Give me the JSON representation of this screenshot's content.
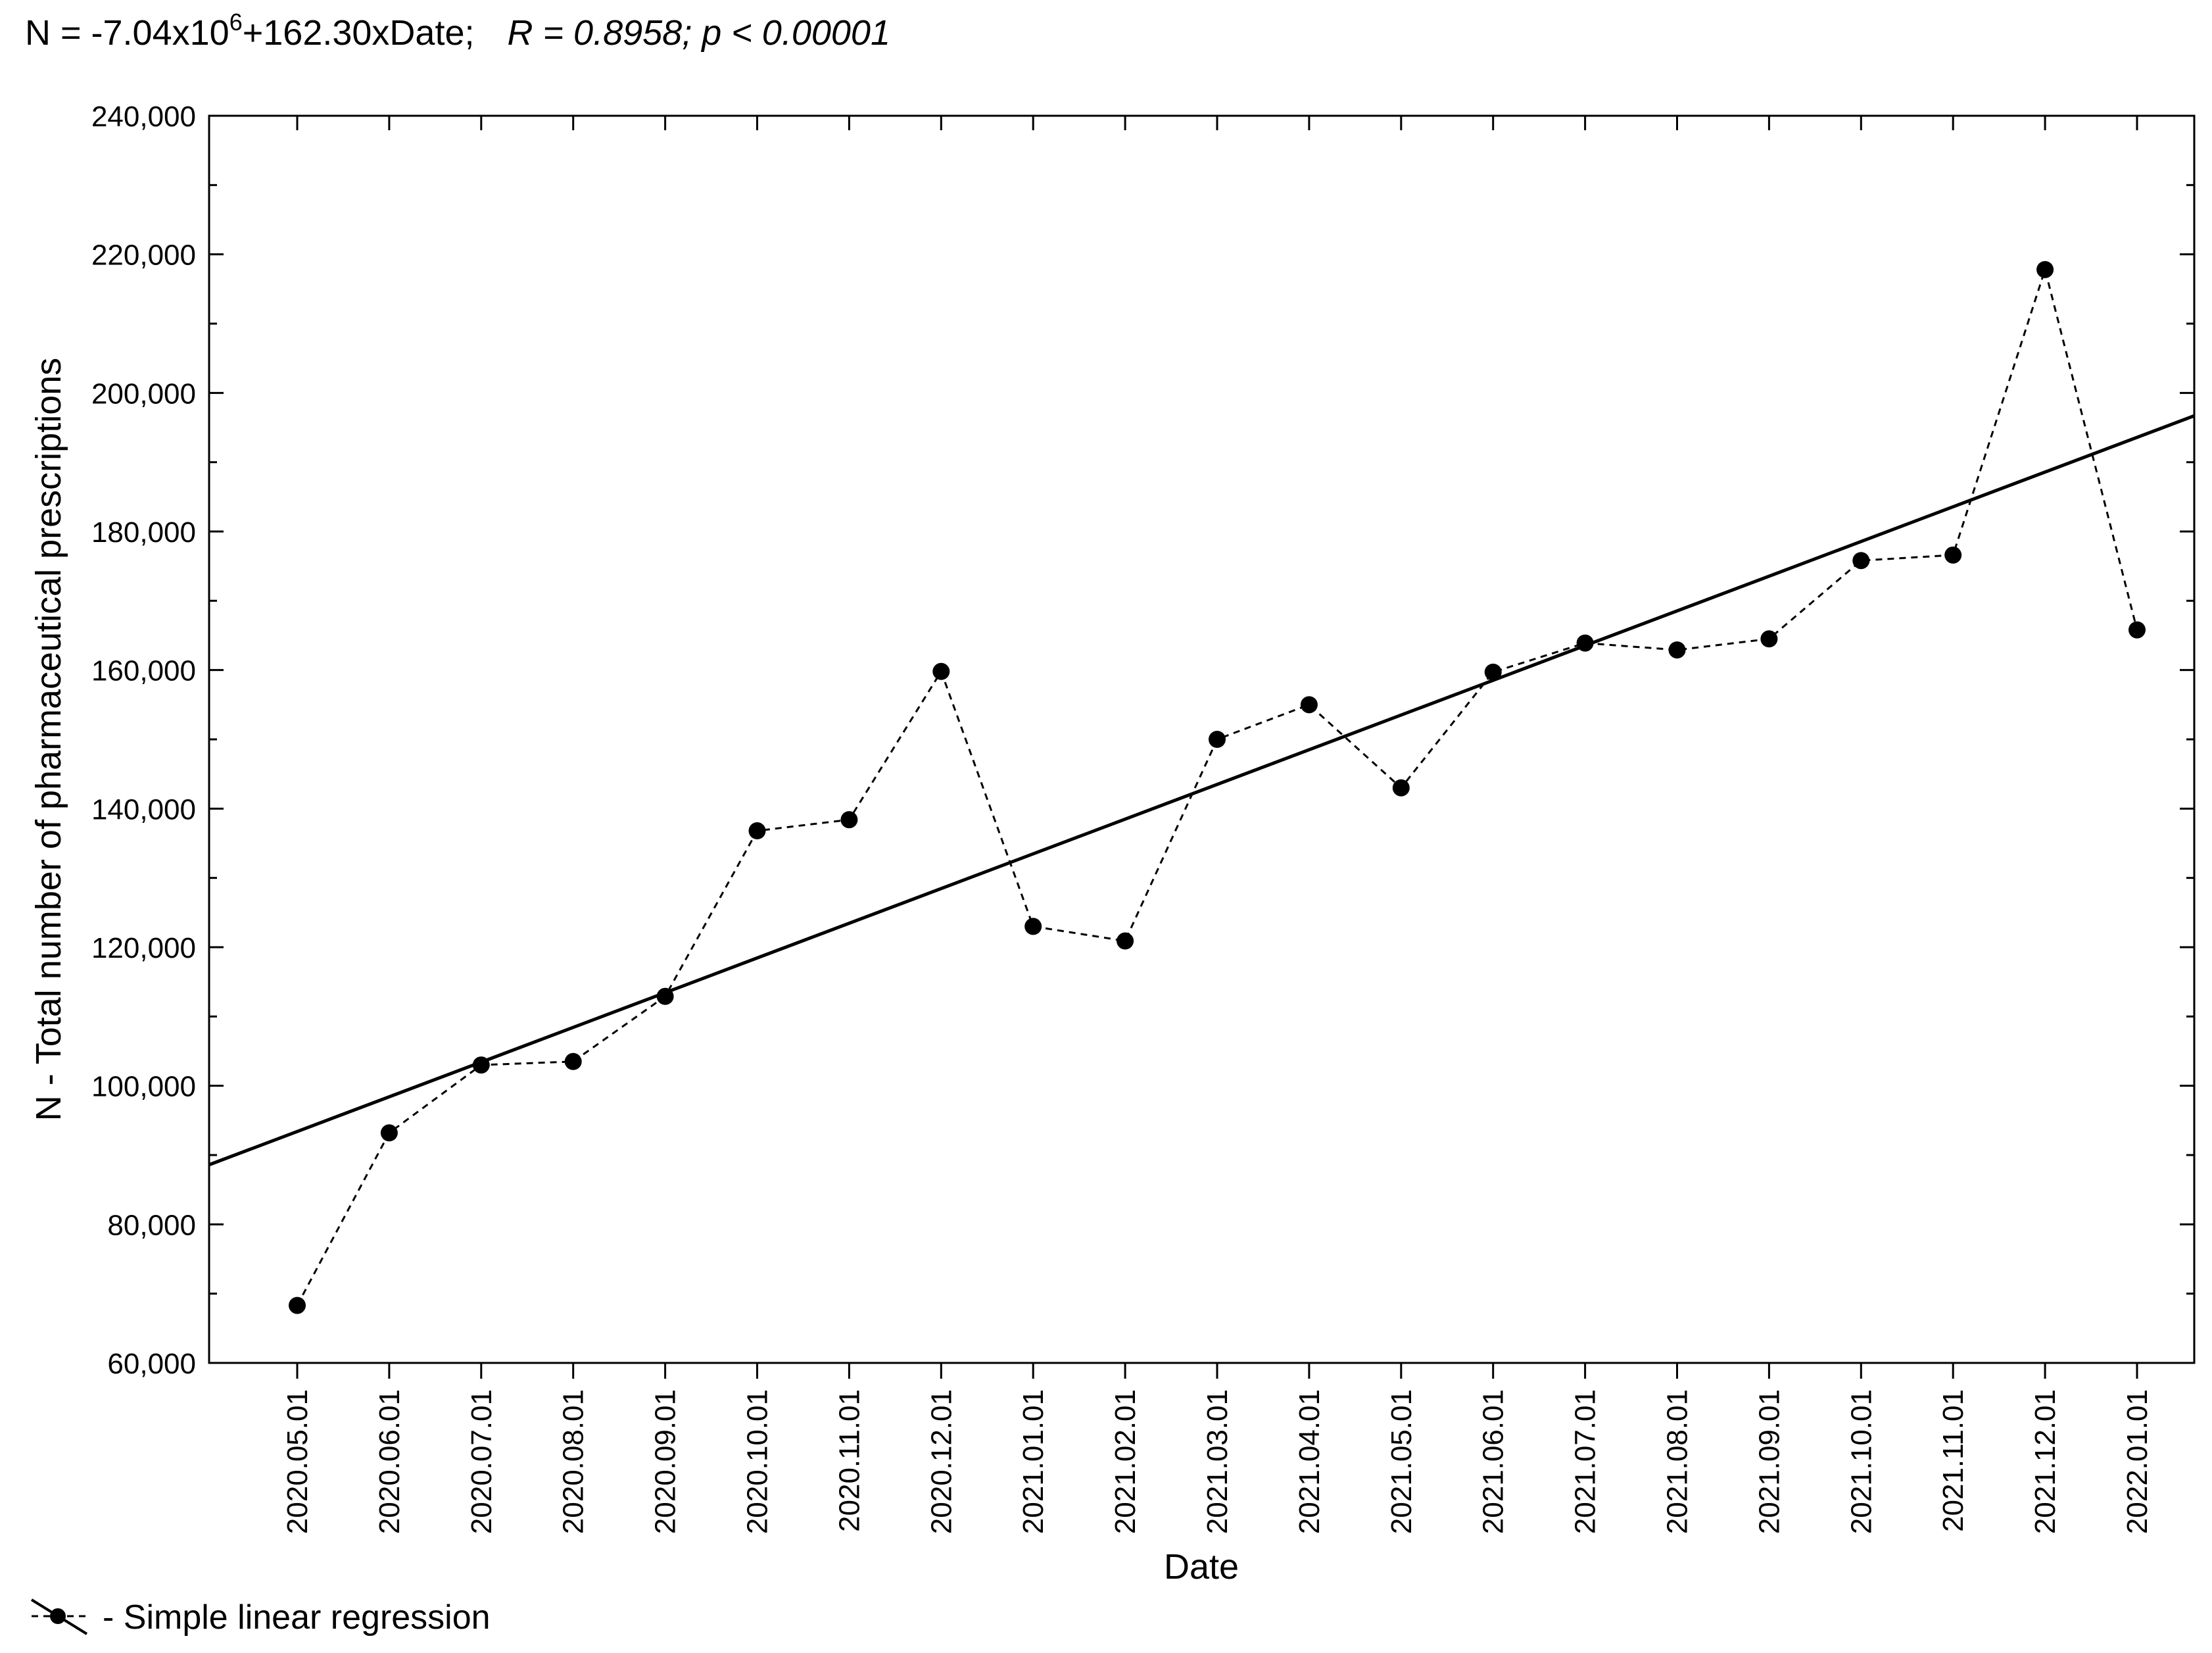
{
  "chart_data": {
    "type": "scatter",
    "title": {
      "equation_prefix": "N = -7.04x10",
      "equation_exponent": "6",
      "equation_suffix": "+162.30xDate;",
      "stats": "R = 0.8958; p < 0.00001"
    },
    "xlabel": "Date",
    "ylabel": "N - Total number of pharmaceutical prescriptions",
    "categories": [
      "2020.05.01",
      "2020.06.01",
      "2020.07.01",
      "2020.08.01",
      "2020.09.01",
      "2020.10.01",
      "2020.11.01",
      "2020.12.01",
      "2021.01.01",
      "2021.02.01",
      "2021.03.01",
      "2021.04.01",
      "2021.05.01",
      "2021.06.01",
      "2021.07.01",
      "2021.08.01",
      "2021.09.01",
      "2021.10.01",
      "2021.11.01",
      "2021.12.01",
      "2022.01.01"
    ],
    "series": [
      {
        "values": [
          68300,
          93200,
          103000,
          103500,
          112900,
          136800,
          138400,
          159800,
          123000,
          120900,
          150000,
          155000,
          143000,
          159700,
          163900,
          162900,
          164500,
          175800,
          176600,
          217800,
          165800
        ],
        "line_style": "dashed",
        "marker": "circle",
        "color": "#000000"
      }
    ],
    "regression": {
      "label": "Simple linear regression",
      "y_at_x_axis_start": 88600,
      "y_at_x_axis_end": 196700,
      "line_style": "solid",
      "color": "#000000"
    },
    "ylim": [
      60000,
      240000
    ],
    "yticks": [
      60000,
      80000,
      100000,
      120000,
      140000,
      160000,
      180000,
      200000,
      220000,
      240000
    ],
    "ytick_labels": [
      "60,000",
      "80,000",
      "100,000",
      "120,000",
      "140,000",
      "160,000",
      "180,000",
      "200,000",
      "220,000",
      "240,000"
    ],
    "grid": false,
    "legend": {
      "placement": "bottom-left",
      "text": "- Simple linear regression"
    }
  }
}
